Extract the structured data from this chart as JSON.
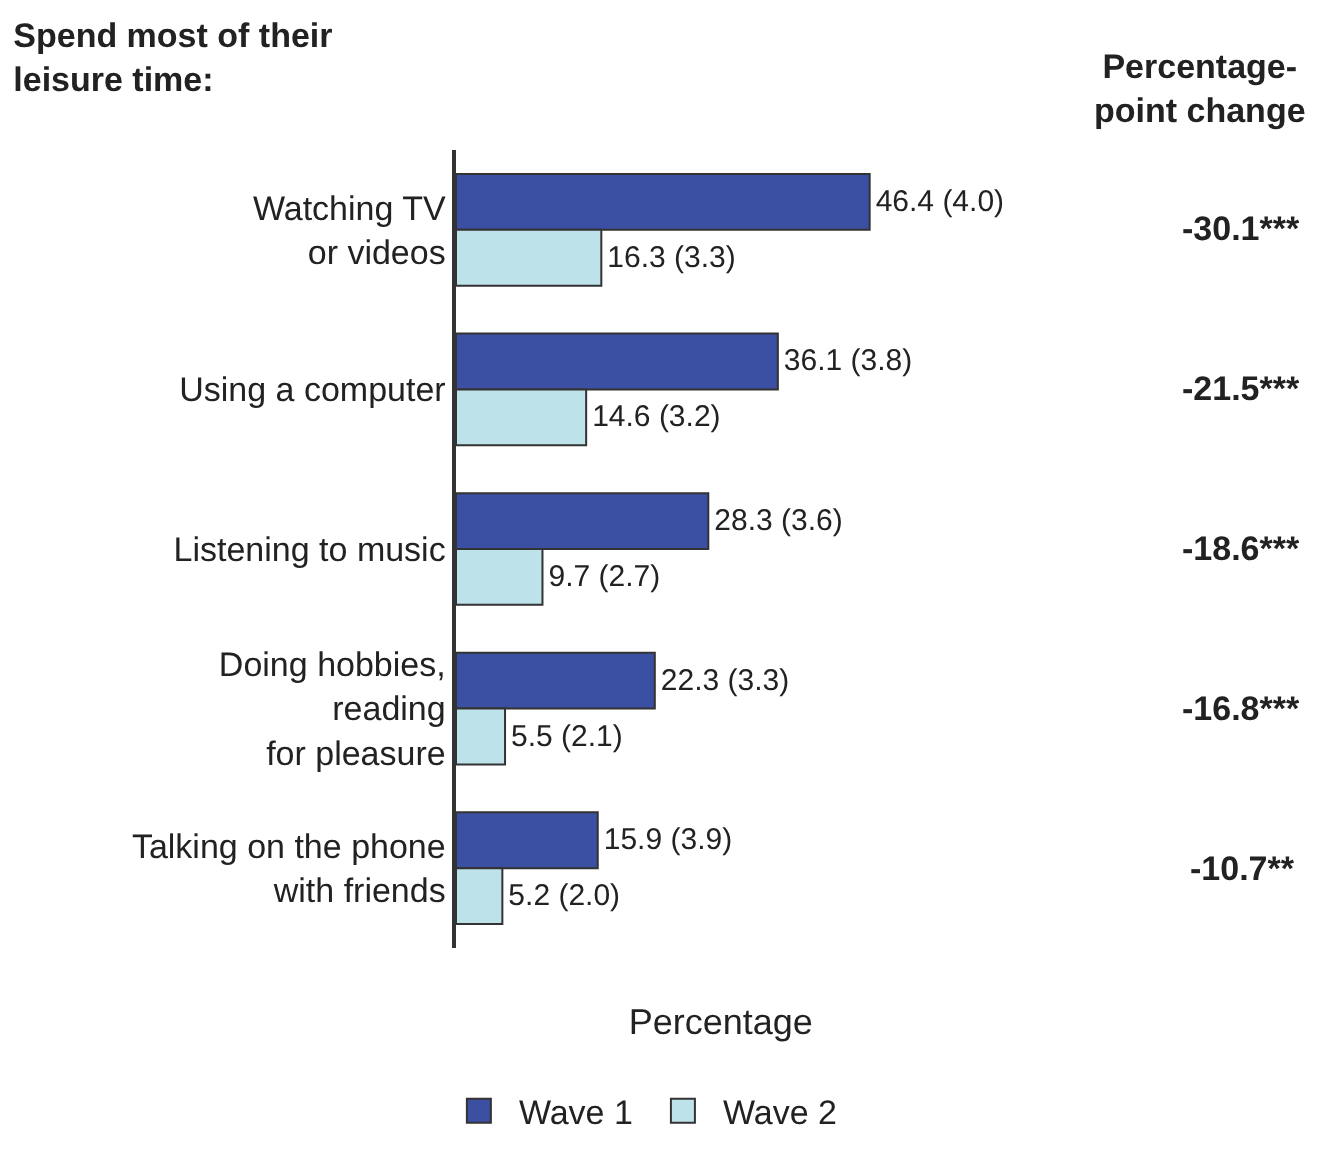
{
  "chart_data": {
    "type": "bar",
    "orientation": "horizontal",
    "title": "Spend most of their\nleisure time:",
    "xlabel": "Percentage",
    "categories": [
      "Watching TV\nor videos",
      "Using a computer",
      "Listening to music",
      "Doing hobbies,\nreading\nfor pleasure",
      "Talking on the phone\nwith friends"
    ],
    "series": [
      {
        "name": "Wave 1",
        "color": "#3b4fa3",
        "values": [
          46.4,
          36.1,
          28.3,
          22.3,
          15.9
        ],
        "value_labels": [
          "46.4 (4.0)",
          "36.1 (3.8)",
          "28.3 (3.6)",
          "22.3 (3.3)",
          "15.9 (3.9)"
        ]
      },
      {
        "name": "Wave 2",
        "color": "#bde2ea",
        "values": [
          16.3,
          14.6,
          9.7,
          5.5,
          5.2
        ],
        "value_labels": [
          "16.3 (3.3)",
          "14.6 (3.2)",
          "9.7 (2.7)",
          "5.5 (2.1)",
          "5.2 (2.0)"
        ]
      }
    ],
    "annotations": [
      "Percentage-\npoint change",
      "-30.1***",
      "-21.5***",
      "-18.6***",
      "-16.8***",
      "-10.7**"
    ],
    "legend": "bottom",
    "tick_labels": "y"
  }
}
